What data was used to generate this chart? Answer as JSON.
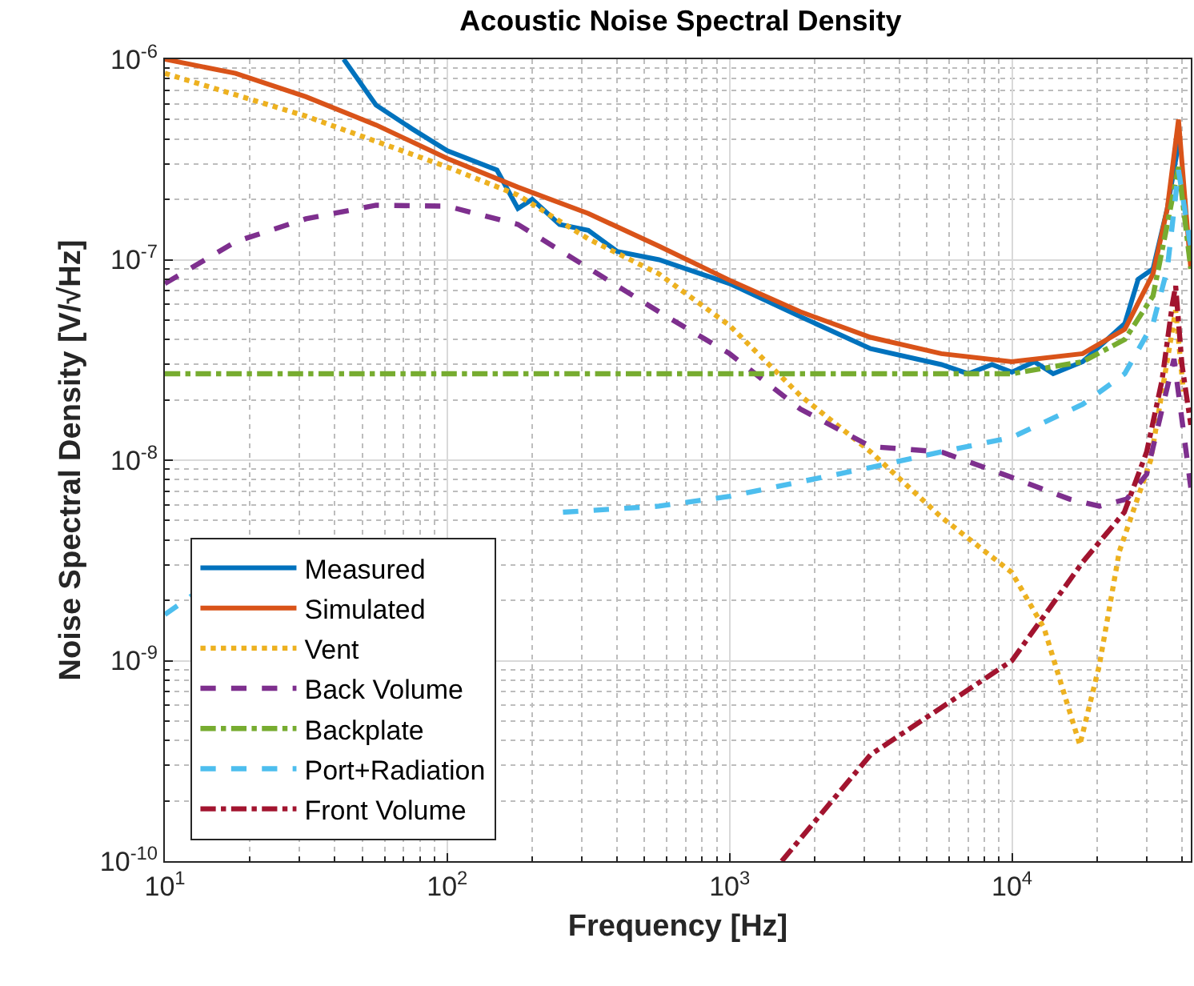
{
  "chart_data": {
    "type": "line",
    "title": "Acoustic Noise Spectral Density",
    "xlabel": "Frequency [Hz]",
    "ylabel": "Noise Spectral Density [V/√Hz]",
    "log": "xy",
    "grid": true,
    "legend": "bottom left",
    "xlim": [
      10,
      43000
    ],
    "ylim": [
      1e-10,
      1e-06
    ],
    "xticks": [
      {
        "value": 10,
        "label": "10$^{1}$"
      },
      {
        "value": 100,
        "label": "10$^{2}$"
      },
      {
        "value": 1000,
        "label": "10$^{3}$"
      },
      {
        "value": 10000,
        "label": "10$^{4}$"
      }
    ],
    "yticks": [
      {
        "value": 1e-10,
        "label": "10$^{-10}$"
      },
      {
        "value": 1e-09,
        "label": "10$^{-9}$"
      },
      {
        "value": 1e-08,
        "label": "10$^{-8}$"
      },
      {
        "value": 1e-07,
        "label": "10$^{-7}$"
      },
      {
        "value": 1e-06,
        "label": "10$^{-6}$"
      }
    ],
    "series": [
      {
        "name": "Measured",
        "color": "#0072bd",
        "line_style": "solid",
        "x": [
          43,
          56,
          75,
          100,
          150,
          178,
          200,
          250,
          316,
          400,
          562,
          1000,
          1780,
          3160,
          5620,
          7000,
          8500,
          10000,
          12000,
          14000,
          17800,
          25100,
          28000,
          31600,
          35500,
          38900
        ],
        "values": [
          1e-06,
          5.9e-07,
          4.5e-07,
          3.5e-07,
          2.8e-07,
          1.8e-07,
          2e-07,
          1.5e-07,
          1.4e-07,
          1.1e-07,
          1e-07,
          7.6e-08,
          5.2e-08,
          3.6e-08,
          3e-08,
          2.7e-08,
          3e-08,
          2.75e-08,
          3.1e-08,
          2.7e-08,
          3.1e-08,
          4.8e-08,
          8e-08,
          9e-08,
          1.8e-07,
          3.8e-07
        ]
      },
      {
        "name": "Simulated",
        "color": "#d95319",
        "line_style": "solid",
        "x": [
          10,
          17.8,
          31.6,
          56,
          100,
          178,
          316,
          562,
          1000,
          1780,
          3160,
          5620,
          10000,
          17800,
          25100,
          31600,
          35500,
          38900,
          41000,
          43000
        ],
        "values": [
          1e-06,
          8.5e-07,
          6.5e-07,
          4.7e-07,
          3.2e-07,
          2.3e-07,
          1.7e-07,
          1.17e-07,
          7.9e-08,
          5.5e-08,
          4.1e-08,
          3.4e-08,
          3.1e-08,
          3.4e-08,
          4.5e-08,
          8.5e-08,
          1.8e-07,
          5e-07,
          2e-07,
          9e-08
        ]
      },
      {
        "name": "Vent",
        "color": "#edb120",
        "line_style": "dotted",
        "x": [
          10,
          31.6,
          100,
          178,
          316,
          562,
          1000,
          1780,
          3160,
          5620,
          10000,
          13000,
          17400,
          20400,
          24000,
          31000,
          38000,
          40500
        ],
        "values": [
          8.5e-07,
          5.2e-07,
          2.9e-07,
          2.1e-07,
          1.27e-07,
          8.5e-08,
          4.7e-08,
          2.1e-08,
          1.1e-08,
          5.2e-09,
          2.75e-09,
          1.45e-09,
          3.8e-10,
          9.5e-10,
          3.5e-09,
          1e-08,
          5.6e-08,
          2.2e-08
        ]
      },
      {
        "name": "Back Volume",
        "color": "#7e2f8e",
        "line_style": "dashed",
        "x": [
          10,
          17.8,
          31.6,
          56,
          100,
          178,
          316,
          562,
          1000,
          1780,
          3160,
          5620,
          10000,
          16000,
          20400,
          25500,
          30000,
          37500,
          43000
        ],
        "values": [
          7.6e-08,
          1.23e-07,
          1.6e-07,
          1.87e-07,
          1.85e-07,
          1.5e-07,
          9.1e-08,
          5.5e-08,
          3.4e-08,
          1.8e-08,
          1.17e-08,
          1.1e-08,
          8.2e-09,
          6.4e-09,
          5.9e-09,
          6.4e-09,
          8.5e-09,
          3.2e-08,
          7.3e-09
        ]
      },
      {
        "name": "Backplate",
        "color": "#77ac30",
        "line_style": "dashdot",
        "x": [
          10,
          100,
          1000,
          10000,
          17800,
          25100,
          31600,
          35500,
          38900,
          43000
        ],
        "values": [
          2.7e-08,
          2.7e-08,
          2.7e-08,
          2.7e-08,
          3.1e-08,
          4e-08,
          6.6e-08,
          1.5e-07,
          2.9e-07,
          9e-08
        ]
      },
      {
        "name": "Port+Radiation",
        "color": "#4dbeee",
        "line_style": "dashed",
        "x": [
          10,
          13,
          50,
          257,
          562,
          1000,
          1780,
          3160,
          5620,
          10000,
          17800,
          25100,
          31600,
          35500,
          38900,
          43000
        ],
        "values": [
          1.7e-09,
          2.2e-09,
          null,
          5.5e-09,
          5.9e-09,
          6.6e-09,
          7.8e-09,
          9.2e-09,
          1.1e-08,
          1.3e-08,
          1.9e-08,
          2.7e-08,
          4.8e-08,
          9e-08,
          2.8e-07,
          1.15e-07
        ]
      },
      {
        "name": "Front Volume",
        "color": "#a2142f",
        "line_style": "dashdot",
        "x": [
          1530,
          3160,
          10000,
          17800,
          25000,
          30000,
          34000,
          37000,
          38000,
          40000,
          43000
        ],
        "values": [
          1e-10,
          3.4e-10,
          1e-09,
          3.1e-09,
          5.5e-09,
          1.1e-08,
          2.5e-08,
          6e-08,
          7.4e-08,
          3e-08,
          1.5e-08
        ]
      }
    ]
  }
}
